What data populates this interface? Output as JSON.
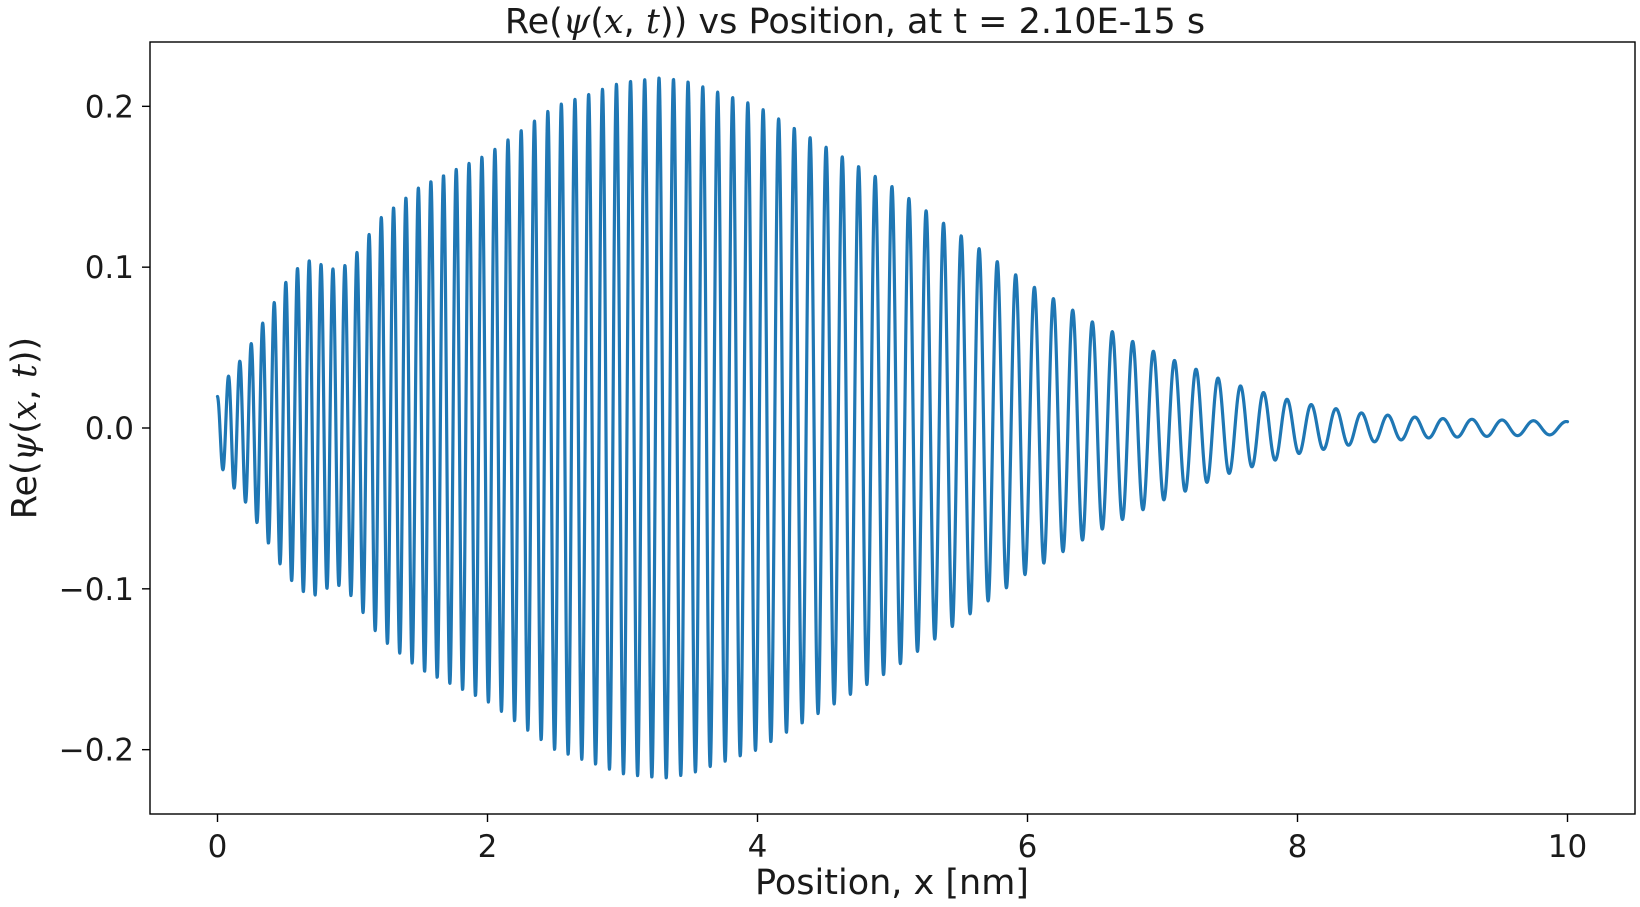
{
  "chart_data": {
    "type": "line",
    "title": {
      "prefix": "Re(",
      "psi": "ψ",
      "open": "(",
      "x": "x",
      "comma": ", ",
      "t": "t",
      "close": "))",
      "suffix": " vs Position, at t = 2.10E-15 s"
    },
    "xlabel": "Position, x [nm]",
    "ylabel": {
      "prefix": "Re(",
      "psi": "ψ",
      "open": "(",
      "x": "x",
      "comma": ", ",
      "t": "t",
      "close": "))"
    },
    "xlim": [
      -0.5,
      10.5
    ],
    "ylim": [
      -0.24,
      0.24
    ],
    "x_ticks": [
      0,
      2,
      4,
      6,
      8,
      10
    ],
    "x_tick_labels": [
      "0",
      "2",
      "4",
      "6",
      "8",
      "10"
    ],
    "y_ticks": [
      -0.2,
      -0.1,
      0.0,
      0.1,
      0.2
    ],
    "y_tick_labels": [
      "−0.2",
      "−0.1",
      "0.0",
      "0.1",
      "0.2"
    ],
    "grid": false,
    "series": [
      {
        "color": "#1f77b4",
        "x_range": [
          0,
          10
        ],
        "envelope_samples": {
          "x": [
            0.0,
            0.1,
            0.2,
            0.3,
            0.4,
            0.5,
            0.6,
            0.7,
            0.8,
            0.9,
            1.0,
            1.2,
            1.5,
            2.0,
            2.5,
            3.0,
            3.3,
            3.5,
            4.0,
            4.5,
            5.0,
            5.5,
            6.0,
            6.5,
            7.0,
            7.5,
            8.0,
            8.5,
            9.0,
            9.5,
            10.0
          ],
          "amplitude": [
            0.02,
            0.035,
            0.045,
            0.06,
            0.075,
            0.09,
            0.1,
            0.105,
            0.1,
            0.098,
            0.105,
            0.13,
            0.15,
            0.17,
            0.2,
            0.215,
            0.218,
            0.215,
            0.2,
            0.175,
            0.15,
            0.12,
            0.09,
            0.065,
            0.045,
            0.028,
            0.016,
            0.009,
            0.006,
            0.005,
            0.004
          ]
        },
        "start_value": 0.02,
        "end_value": 0.0
      }
    ]
  }
}
